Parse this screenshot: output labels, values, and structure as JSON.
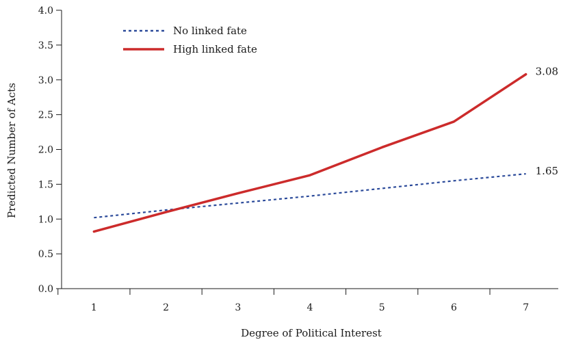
{
  "chart_data": {
    "type": "line",
    "title": "",
    "xlabel": "Degree of Political Interest",
    "ylabel": "Predicted Number of Acts",
    "x": [
      1,
      2,
      3,
      4,
      5,
      6,
      7
    ],
    "x_tick_labels": [
      "1",
      "2",
      "3",
      "4",
      "5",
      "6",
      "7"
    ],
    "xlim": [
      0.55,
      7.45
    ],
    "ylim": [
      0,
      4
    ],
    "y_ticks": [
      0,
      0.5,
      1,
      1.5,
      2,
      2.5,
      3,
      3.5,
      4
    ],
    "y_tick_labels": [
      "0.0",
      "0.5",
      "1.0",
      "1.5",
      "2.0",
      "2.5",
      "3.0",
      "3.5",
      "4.0"
    ],
    "grid": false,
    "legend_position": "top-left",
    "series": [
      {
        "name": "No linked fate",
        "style": "dotted",
        "color": "#2b4a9a",
        "values": [
          1.02,
          1.13,
          1.23,
          1.33,
          1.44,
          1.55,
          1.65
        ],
        "end_label": "1.65"
      },
      {
        "name": "High linked fate",
        "style": "solid",
        "color": "#cc2b2b",
        "values": [
          0.82,
          1.1,
          1.37,
          1.63,
          2.03,
          2.4,
          3.08
        ],
        "end_label": "3.08"
      }
    ]
  }
}
